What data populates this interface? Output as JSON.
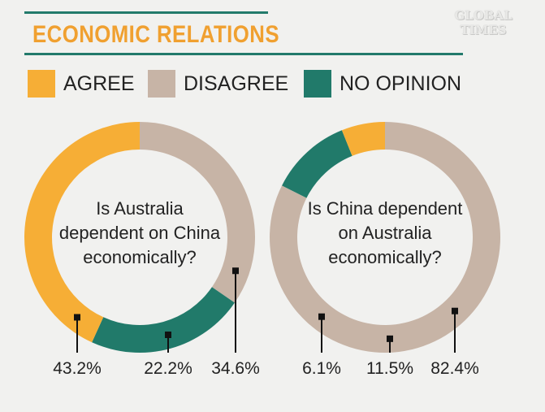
{
  "header": {
    "title": "ECONOMIC RELATIONS",
    "logo_line1": "GLOBAL",
    "logo_line2": "TIMES"
  },
  "colors": {
    "agree": "#f6ae36",
    "disagree": "#c7b4a6",
    "no_opinion": "#217a6a"
  },
  "legend": [
    {
      "key": "agree",
      "label": "AGREE"
    },
    {
      "key": "disagree",
      "label": "DISAGREE"
    },
    {
      "key": "no_opinion",
      "label": "NO OPINION"
    }
  ],
  "chart_data": [
    {
      "type": "pie",
      "style": "donut",
      "question": [
        "Is Australia",
        "dependent on China",
        "economically?"
      ],
      "slices": [
        {
          "key": "agree",
          "label": "AGREE",
          "value": 43.2,
          "value_label": "43.2%"
        },
        {
          "key": "no_opinion",
          "label": "NO OPINION",
          "value": 22.2,
          "value_label": "22.2%"
        },
        {
          "key": "disagree",
          "label": "DISAGREE",
          "value": 34.6,
          "value_label": "34.6%"
        }
      ]
    },
    {
      "type": "pie",
      "style": "donut",
      "question": [
        "Is China dependent",
        "on Australia",
        "economically?"
      ],
      "slices": [
        {
          "key": "agree",
          "label": "AGREE",
          "value": 6.1,
          "value_label": "6.1%"
        },
        {
          "key": "no_opinion",
          "label": "NO OPINION",
          "value": 11.5,
          "value_label": "11.5%"
        },
        {
          "key": "disagree",
          "label": "DISAGREE",
          "value": 82.4,
          "value_label": "82.4%"
        }
      ]
    }
  ]
}
